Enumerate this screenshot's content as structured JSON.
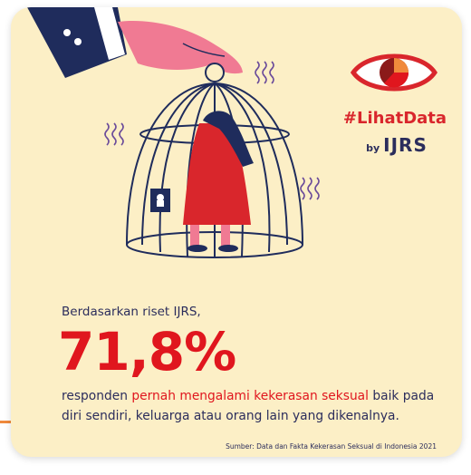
{
  "header": {
    "hashtag": "#LihatData",
    "by": "by",
    "org": "IJRS"
  },
  "body": {
    "intro": "Berdasarkan riset IJRS,",
    "stat": "71,8%",
    "text": {
      "before": "responden",
      "highlight": "pernah mengalami kekerasan seksual",
      "after": "baik pada diri sendiri, keluarga atau orang lain yang dikenalnya."
    }
  },
  "footer": {
    "source": "Sumber: Data dan Fakta Kekerasan Seksual di Indonesia 2021"
  }
}
